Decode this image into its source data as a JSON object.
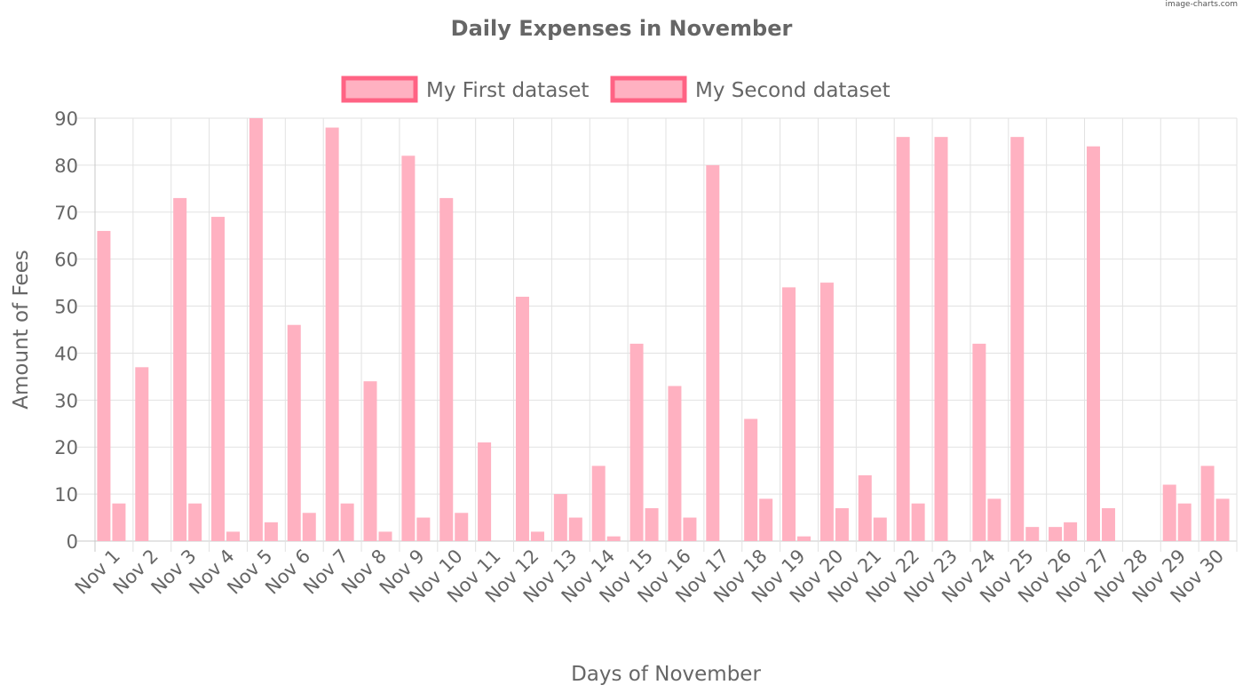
{
  "watermark": "image-charts.com",
  "chart_data": {
    "type": "bar",
    "title": "Daily Expenses in November",
    "xlabel": "Days of November",
    "ylabel": "Amount of Fees",
    "ylim": [
      0,
      90
    ],
    "yticks": [
      0,
      10,
      20,
      30,
      40,
      50,
      60,
      70,
      80,
      90
    ],
    "grid": true,
    "legend_position": "top",
    "categories": [
      "Nov 1",
      "Nov 2",
      "Nov 3",
      "Nov 4",
      "Nov 5",
      "Nov 6",
      "Nov 7",
      "Nov 8",
      "Nov 9",
      "Nov 10",
      "Nov 11",
      "Nov 12",
      "Nov 13",
      "Nov 14",
      "Nov 15",
      "Nov 16",
      "Nov 17",
      "Nov 18",
      "Nov 19",
      "Nov 20",
      "Nov 21",
      "Nov 22",
      "Nov 23",
      "Nov 24",
      "Nov 25",
      "Nov 26",
      "Nov 27",
      "Nov 28",
      "Nov 29",
      "Nov 30"
    ],
    "series": [
      {
        "name": "My First dataset",
        "color": "#ffb1c1",
        "border": "#ff6384",
        "values": [
          66,
          37,
          73,
          69,
          90,
          46,
          88,
          34,
          82,
          73,
          21,
          52,
          10,
          16,
          42,
          33,
          80,
          26,
          54,
          55,
          14,
          86,
          86,
          42,
          86,
          3,
          84,
          0,
          12,
          16
        ]
      },
      {
        "name": "My Second dataset",
        "color": "#ffb1c1",
        "border": "#ff6384",
        "values": [
          8,
          0,
          8,
          2,
          4,
          6,
          8,
          2,
          5,
          6,
          0,
          2,
          5,
          1,
          7,
          5,
          0,
          9,
          1,
          7,
          5,
          8,
          0,
          9,
          3,
          4,
          7,
          0,
          8,
          9
        ]
      }
    ]
  }
}
